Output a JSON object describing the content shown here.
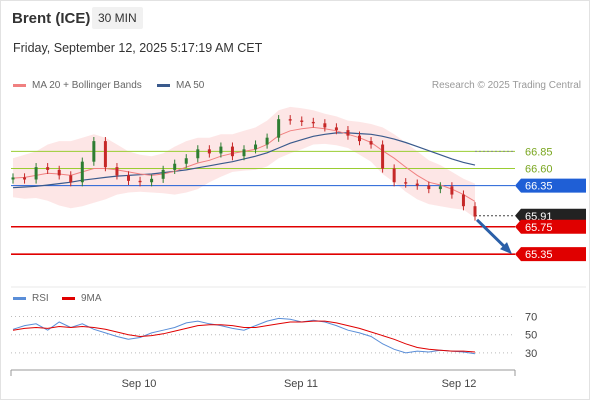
{
  "header": {
    "instrument": "Brent (ICE)",
    "timeframe": "30 MIN",
    "datetime": "Friday, September 12, 2025 5:17:19 AM CET"
  },
  "legend": {
    "ma20_bb": "MA 20 + Bollinger Bands",
    "ma50": "MA 50",
    "credit": "Research © 2025 Trading Central",
    "rsi": "RSI",
    "rsi_ma": "9MA"
  },
  "colors": {
    "candle_up": "#2e7d32",
    "candle_down": "#c62828",
    "bollinger_fill": "#fde0e0",
    "ma20": "#f08080",
    "ma50": "#3a5a8c",
    "support": "#e00000",
    "resistance_light": "#9acd32",
    "pivot": "#1f5fd6",
    "last_price": "#222222",
    "forecast_arrow": "#2a5fa8",
    "rsi": "#5a8ed8",
    "rsi_ma": "#e00000"
  },
  "chart_data": {
    "type": "line",
    "title": "Brent (ICE)",
    "timeframe": "30 MIN",
    "x_ticks": [
      "Sep 10",
      "Sep 11",
      "Sep 12"
    ],
    "price_levels": [
      {
        "label": "66.85",
        "value": 66.85,
        "style": "resistance"
      },
      {
        "label": "66.60",
        "value": 66.6,
        "style": "resistance"
      },
      {
        "label": "66.35",
        "value": 66.35,
        "style": "pivot"
      },
      {
        "label": "65.91",
        "value": 65.91,
        "style": "last"
      },
      {
        "label": "65.75",
        "value": 65.75,
        "style": "support"
      },
      {
        "label": "65.35",
        "value": 65.35,
        "style": "support"
      }
    ],
    "price_series": [
      66.47,
      66.44,
      66.62,
      66.58,
      66.5,
      66.4,
      66.7,
      67.0,
      66.62,
      66.5,
      66.42,
      66.4,
      66.45,
      66.58,
      66.67,
      66.75,
      66.88,
      66.82,
      66.92,
      66.78,
      66.88,
      66.95,
      67.05,
      67.32,
      67.3,
      67.28,
      67.26,
      67.2,
      67.16,
      67.08,
      67.0,
      66.95,
      66.6,
      66.4,
      66.38,
      66.35,
      66.3,
      66.34,
      66.22,
      66.05,
      65.9
    ],
    "ma20": [
      66.46,
      66.47,
      66.5,
      66.53,
      66.52,
      66.5,
      66.55,
      66.6,
      66.6,
      66.58,
      66.55,
      66.52,
      66.5,
      66.52,
      66.56,
      66.62,
      66.68,
      66.72,
      66.78,
      66.82,
      66.85,
      66.88,
      66.95,
      67.08,
      67.15,
      67.18,
      67.2,
      67.18,
      67.15,
      67.1,
      67.05,
      66.98,
      66.86,
      66.75,
      66.62,
      66.5,
      66.4,
      66.36,
      66.3,
      66.22,
      66.12
    ],
    "ma50": [
      66.32,
      66.33,
      66.34,
      66.36,
      66.38,
      66.4,
      66.43,
      66.45,
      66.47,
      66.49,
      66.5,
      66.51,
      66.52,
      66.54,
      66.56,
      66.58,
      66.61,
      66.64,
      66.67,
      66.7,
      66.74,
      66.78,
      66.83,
      66.9,
      66.97,
      67.02,
      67.07,
      67.1,
      67.12,
      67.12,
      67.11,
      67.1,
      67.07,
      67.03,
      66.98,
      66.92,
      66.86,
      66.8,
      66.74,
      66.69,
      66.65
    ],
    "bb_upper": [
      66.75,
      66.8,
      66.85,
      66.95,
      67.0,
      67.0,
      67.05,
      67.1,
      67.05,
      66.95,
      66.85,
      66.8,
      66.78,
      66.82,
      66.92,
      67.0,
      67.05,
      67.05,
      67.1,
      67.1,
      67.15,
      67.2,
      67.3,
      67.45,
      67.5,
      67.48,
      67.45,
      67.4,
      67.36,
      67.3,
      67.28,
      67.25,
      67.2,
      67.1,
      66.98,
      66.85,
      66.72,
      66.65,
      66.55,
      66.45,
      66.38
    ],
    "bb_lower": [
      66.18,
      66.16,
      66.17,
      66.13,
      66.06,
      66.02,
      66.05,
      66.1,
      66.15,
      66.22,
      66.25,
      66.26,
      66.25,
      66.24,
      66.22,
      66.25,
      66.3,
      66.4,
      66.48,
      66.55,
      66.57,
      66.58,
      66.63,
      66.75,
      66.82,
      66.88,
      66.95,
      66.96,
      66.94,
      66.9,
      66.8,
      66.7,
      66.52,
      66.4,
      66.26,
      66.15,
      66.08,
      66.05,
      66.02,
      66.0,
      65.88
    ],
    "forecast": {
      "from": 65.91,
      "to": 65.35
    },
    "rsi": {
      "levels": [
        70,
        50,
        30
      ],
      "values": [
        56,
        60,
        62,
        55,
        64,
        58,
        62,
        56,
        52,
        48,
        45,
        47,
        52,
        55,
        58,
        63,
        65,
        62,
        60,
        57,
        55,
        60,
        65,
        68,
        67,
        64,
        66,
        64,
        60,
        55,
        52,
        48,
        40,
        34,
        30,
        32,
        31,
        33,
        32,
        31,
        29
      ],
      "ma9": [
        55,
        57,
        58,
        57,
        59,
        58,
        59,
        58,
        56,
        53,
        50,
        48,
        49,
        51,
        54,
        57,
        60,
        61,
        61,
        60,
        58,
        58,
        60,
        62,
        64,
        64,
        65,
        65,
        63,
        60,
        57,
        53,
        49,
        45,
        40,
        36,
        34,
        33,
        32,
        32,
        31
      ],
      "ylim": [
        20,
        75
      ]
    },
    "ylim": [
      64.9,
      67.6
    ]
  }
}
